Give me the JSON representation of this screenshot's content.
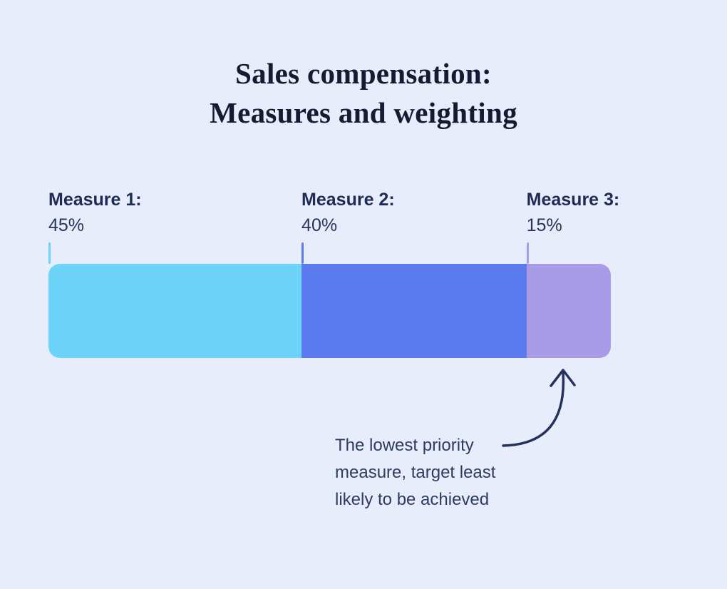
{
  "title": {
    "line1": "Sales compensation:",
    "line2": "Measures and weighting"
  },
  "measures": [
    {
      "label": "Measure 1:",
      "value": "45%",
      "percent": 45,
      "color": "#6ed3f8"
    },
    {
      "label": "Measure 2:",
      "value": "40%",
      "percent": 40,
      "color": "#5b7bee"
    },
    {
      "label": "Measure 3:",
      "value": "15%",
      "percent": 15,
      "color": "#a79ce5"
    }
  ],
  "annotation": {
    "text": "The lowest priority measure, target least likely to be achieved"
  },
  "colors": {
    "bg": "#e7edfb",
    "title": "#141b33",
    "label": "#1f2b53",
    "value": "#27345c",
    "annotation": "#2e3b63",
    "arrow": "#25325c"
  },
  "chart_data": {
    "type": "bar",
    "subtype": "horizontal-stacked-single-bar",
    "title": "Sales compensation: Measures and weighting",
    "categories": [
      "Measure 1",
      "Measure 2",
      "Measure 3"
    ],
    "values": [
      45,
      40,
      15
    ],
    "unit": "%",
    "colors": [
      "#6ed3f8",
      "#5b7bee",
      "#a79ce5"
    ],
    "legend": "none",
    "grid": false,
    "annotations": [
      {
        "text": "The lowest priority measure, target least likely to be achieved",
        "target": "Measure 3",
        "style": "curved hand-drawn arrow pointing to third segment"
      }
    ]
  }
}
